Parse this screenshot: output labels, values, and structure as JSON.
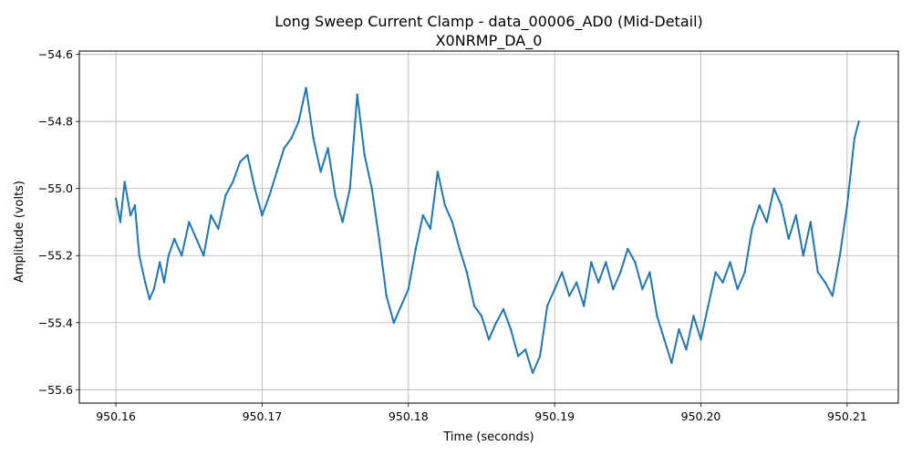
{
  "chart_data": {
    "type": "line",
    "title": "Long Sweep Current Clamp - data_00006_AD0 (Mid-Detail)",
    "subtitle": "X0NRMP_DA_0",
    "xlabel": "Time (seconds)",
    "ylabel": "Amplitude (volts)",
    "xlim": [
      950.1575,
      950.2135
    ],
    "ylim": [
      -55.64,
      -54.59
    ],
    "grid": true,
    "x_ticks": [
      950.16,
      950.17,
      950.18,
      950.19,
      950.2,
      950.21
    ],
    "x_tick_labels": [
      "950.16",
      "950.17",
      "950.18",
      "950.19",
      "950.20",
      "950.21"
    ],
    "y_ticks": [
      -54.6,
      -54.8,
      -55.0,
      -55.2,
      -55.4,
      -55.6
    ],
    "y_tick_labels": [
      "−54.6",
      "−54.8",
      "−55.0",
      "−55.2",
      "−55.4",
      "−55.6"
    ],
    "series": [
      {
        "color": "#1f77b4",
        "x": [
          950.16,
          950.1603,
          950.1606,
          950.161,
          950.1613,
          950.1616,
          950.162,
          950.1623,
          950.1626,
          950.163,
          950.1633,
          950.1636,
          950.164,
          950.1645,
          950.165,
          950.1655,
          950.166,
          950.1665,
          950.167,
          950.1675,
          950.168,
          950.1685,
          950.169,
          950.1695,
          950.17,
          950.1705,
          950.171,
          950.1715,
          950.172,
          950.1725,
          950.173,
          950.1735,
          950.174,
          950.1745,
          950.175,
          950.1755,
          950.176,
          950.1765,
          950.177,
          950.1775,
          950.178,
          950.1785,
          950.179,
          950.1795,
          950.18,
          950.1805,
          950.181,
          950.1815,
          950.182,
          950.1825,
          950.183,
          950.1835,
          950.184,
          950.1845,
          950.185,
          950.1855,
          950.186,
          950.1865,
          950.187,
          950.1875,
          950.188,
          950.1885,
          950.189,
          950.1895,
          950.19,
          950.1905,
          950.191,
          950.1915,
          950.192,
          950.1925,
          950.193,
          950.1935,
          950.194,
          950.1945,
          950.195,
          950.1955,
          950.196,
          950.1965,
          950.197,
          950.1975,
          950.198,
          950.1985,
          950.199,
          950.1995,
          950.2,
          950.2005,
          950.201,
          950.2015,
          950.202,
          950.2025,
          950.203,
          950.2035,
          950.204,
          950.2045,
          950.205,
          950.2055,
          950.206,
          950.2065,
          950.207,
          950.2075,
          950.208,
          950.2085,
          950.209,
          950.2095,
          950.21,
          950.2105,
          950.2108
        ],
        "values": [
          -55.03,
          -55.1,
          -54.98,
          -55.08,
          -55.05,
          -55.2,
          -55.28,
          -55.33,
          -55.3,
          -55.22,
          -55.28,
          -55.2,
          -55.15,
          -55.2,
          -55.1,
          -55.15,
          -55.2,
          -55.08,
          -55.12,
          -55.02,
          -54.98,
          -54.92,
          -54.9,
          -55.0,
          -55.08,
          -55.02,
          -54.95,
          -54.88,
          -54.85,
          -54.8,
          -54.7,
          -54.85,
          -54.95,
          -54.88,
          -55.02,
          -55.1,
          -55.0,
          -54.72,
          -54.9,
          -55.0,
          -55.15,
          -55.32,
          -55.4,
          -55.35,
          -55.3,
          -55.18,
          -55.08,
          -55.12,
          -54.95,
          -55.05,
          -55.1,
          -55.18,
          -55.25,
          -55.35,
          -55.38,
          -55.45,
          -55.4,
          -55.36,
          -55.42,
          -55.5,
          -55.48,
          -55.55,
          -55.5,
          -55.35,
          -55.3,
          -55.25,
          -55.32,
          -55.28,
          -55.35,
          -55.22,
          -55.28,
          -55.22,
          -55.3,
          -55.25,
          -55.18,
          -55.22,
          -55.3,
          -55.25,
          -55.38,
          -55.45,
          -55.52,
          -55.42,
          -55.48,
          -55.38,
          -55.45,
          -55.35,
          -55.25,
          -55.28,
          -55.22,
          -55.3,
          -55.25,
          -55.12,
          -55.05,
          -55.1,
          -55.0,
          -55.05,
          -55.15,
          -55.08,
          -55.2,
          -55.1,
          -55.25,
          -55.28,
          -55.32,
          -55.2,
          -55.05,
          -54.85,
          -54.8
        ]
      }
    ]
  }
}
